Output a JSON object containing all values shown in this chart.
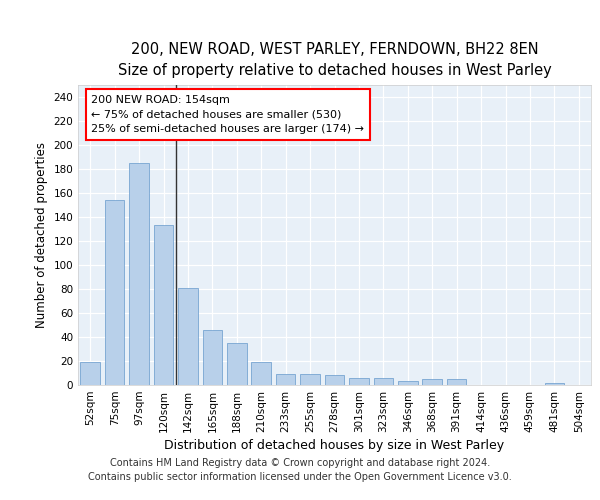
{
  "title": "200, NEW ROAD, WEST PARLEY, FERNDOWN, BH22 8EN",
  "subtitle": "Size of property relative to detached houses in West Parley",
  "xlabel": "Distribution of detached houses by size in West Parley",
  "ylabel": "Number of detached properties",
  "bar_color": "#b8d0ea",
  "bar_edge_color": "#6699cc",
  "background_color": "#e8f0f8",
  "categories": [
    "52sqm",
    "75sqm",
    "97sqm",
    "120sqm",
    "142sqm",
    "165sqm",
    "188sqm",
    "210sqm",
    "233sqm",
    "255sqm",
    "278sqm",
    "301sqm",
    "323sqm",
    "346sqm",
    "368sqm",
    "391sqm",
    "414sqm",
    "436sqm",
    "459sqm",
    "481sqm",
    "504sqm"
  ],
  "values": [
    19,
    154,
    185,
    133,
    81,
    46,
    35,
    19,
    9,
    9,
    8,
    6,
    6,
    3,
    5,
    5,
    0,
    0,
    0,
    2,
    0
  ],
  "ylim": [
    0,
    250
  ],
  "yticks": [
    0,
    20,
    40,
    60,
    80,
    100,
    120,
    140,
    160,
    180,
    200,
    220,
    240
  ],
  "vline_after_index": 3,
  "annotation_line1": "200 NEW ROAD: 154sqm",
  "annotation_line2": "← 75% of detached houses are smaller (530)",
  "annotation_line3": "25% of semi-detached houses are larger (174) →",
  "footer_line1": "Contains HM Land Registry data © Crown copyright and database right 2024.",
  "footer_line2": "Contains public sector information licensed under the Open Government Licence v3.0.",
  "title_fontsize": 10.5,
  "subtitle_fontsize": 9.5,
  "xlabel_fontsize": 9,
  "ylabel_fontsize": 8.5,
  "tick_fontsize": 7.5,
  "annotation_fontsize": 8,
  "footer_fontsize": 7
}
